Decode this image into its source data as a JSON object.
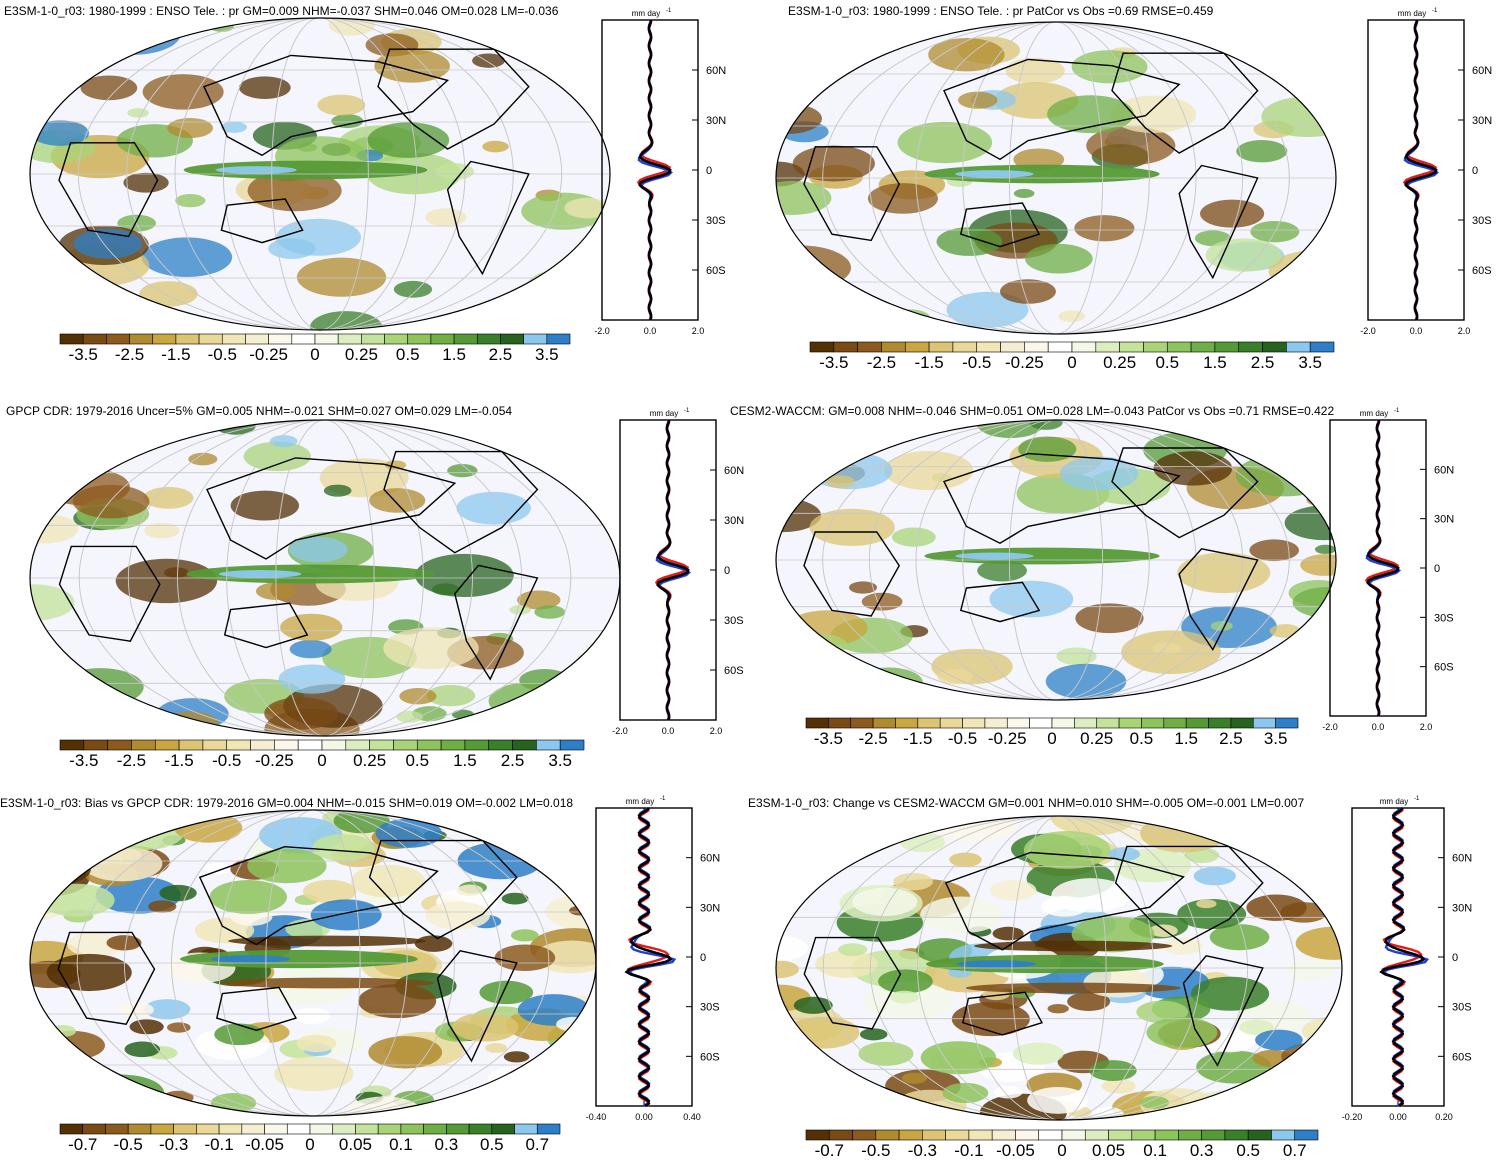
{
  "panels": [
    {
      "title": "E3SM-1-0_r03: 1980-1999 : ENSO Tele. : pr GM=0.009 NHM=-0.037 SHM=0.046 OM=0.028 LM=-0.036",
      "zonal_unit": "mm day",
      "zonal_unit_exp": "-1",
      "zonal_xticks": [
        "-2.0",
        "0.0",
        "2.0"
      ],
      "lat_ticks": [
        "60N",
        "30N",
        "0",
        "30S",
        "60S"
      ],
      "colorbar_labels": [
        "-3.5",
        "-2.5",
        "-1.5",
        "-0.5",
        "-0.25",
        "0",
        "0.25",
        "0.5",
        "1.5",
        "2.5",
        "3.5"
      ]
    },
    {
      "title": "E3SM-1-0_r03: 1980-1999 : ENSO Tele. : pr PatCor vs Obs =0.69 RMSE=0.459",
      "zonal_unit": "mm day",
      "zonal_unit_exp": "-1",
      "zonal_xticks": [
        "-2.0",
        "0.0",
        "2.0"
      ],
      "lat_ticks": [
        "60N",
        "30N",
        "0",
        "30S",
        "60S"
      ],
      "colorbar_labels": [
        "-3.5",
        "-2.5",
        "-1.5",
        "-0.5",
        "-0.25",
        "0",
        "0.25",
        "0.5",
        "1.5",
        "2.5",
        "3.5"
      ]
    },
    {
      "title": "GPCP CDR: 1979-2016 Uncer=5% GM=0.005 NHM=-0.021 SHM=0.027 OM=0.029 LM=-0.054",
      "zonal_unit": "mm day",
      "zonal_unit_exp": "-1",
      "zonal_xticks": [
        "-2.0",
        "0.0",
        "2.0"
      ],
      "lat_ticks": [
        "60N",
        "30N",
        "0",
        "30S",
        "60S"
      ],
      "colorbar_labels": [
        "-3.5",
        "-2.5",
        "-1.5",
        "-0.5",
        "-0.25",
        "0",
        "0.25",
        "0.5",
        "1.5",
        "2.5",
        "3.5"
      ]
    },
    {
      "title": "CESM2-WACCM: GM=0.008 NHM=-0.046 SHM=0.051 OM=0.028 LM=-0.043 PatCor vs Obs =0.71 RMSE=0.422",
      "zonal_unit": "mm day",
      "zonal_unit_exp": "-1",
      "zonal_xticks": [
        "-2.0",
        "0.0",
        "2.0"
      ],
      "lat_ticks": [
        "60N",
        "30N",
        "0",
        "30S",
        "60S"
      ],
      "colorbar_labels": [
        "-3.5",
        "-2.5",
        "-1.5",
        "-0.5",
        "-0.25",
        "0",
        "0.25",
        "0.5",
        "1.5",
        "2.5",
        "3.5"
      ]
    },
    {
      "title": "E3SM-1-0_r03: Bias vs GPCP CDR: 1979-2016 GM=0.004 NHM=-0.015 SHM=0.019 OM=-0.002 LM=0.018",
      "zonal_unit": "mm day",
      "zonal_unit_exp": "-1",
      "zonal_xticks": [
        "-0.40",
        "0.00",
        "0.40"
      ],
      "lat_ticks": [
        "60N",
        "30N",
        "0",
        "30S",
        "60S"
      ],
      "colorbar_labels": [
        "-0.7",
        "-0.5",
        "-0.3",
        "-0.1",
        "-0.05",
        "0",
        "0.05",
        "0.1",
        "0.3",
        "0.5",
        "0.7"
      ]
    },
    {
      "title": "E3SM-1-0_r03: Change vs CESM2-WACCM GM=0.001 NHM=0.010 SHM=-0.005 OM=-0.001 LM=0.007",
      "zonal_unit": "mm day",
      "zonal_unit_exp": "-1",
      "zonal_xticks": [
        "-0.20",
        "0.00",
        "0.20"
      ],
      "lat_ticks": [
        "60N",
        "30N",
        "0",
        "30S",
        "60S"
      ],
      "colorbar_labels": [
        "-0.7",
        "-0.5",
        "-0.3",
        "-0.1",
        "-0.05",
        "0",
        "0.05",
        "0.1",
        "0.3",
        "0.5",
        "0.7"
      ]
    }
  ],
  "colorbar_colors": [
    "#543005",
    "#7a4a14",
    "#8c5a1e",
    "#b08a2e",
    "#c9a63f",
    "#dcc472",
    "#e9d898",
    "#f0e6b6",
    "#f6eed2",
    "#fbf7ea",
    "#ffffff",
    "#f3f8e9",
    "#dceec0",
    "#c3e39a",
    "#a8d477",
    "#8dc35b",
    "#6fae45",
    "#559a36",
    "#3a7f2a",
    "#27631f",
    "#8cc8ee",
    "#2e7fc7"
  ],
  "map_colors": {
    "ocean": "#f4f5fd",
    "grid": "#c8c8c8",
    "coast": "#000000",
    "obs_line": "#000000",
    "model_line": "#e41a1c",
    "ref_line": "#1f3fd8"
  }
}
